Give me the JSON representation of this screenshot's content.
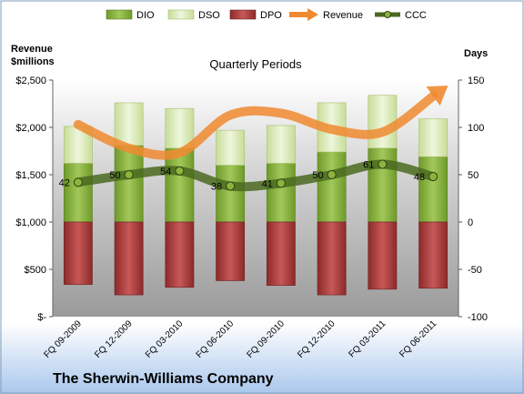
{
  "chart_data": {
    "type": "bar",
    "title": "Quarterly Periods",
    "company": "The Sherwin-Williams Company",
    "ylabel_left": [
      "Revenue",
      "$millions"
    ],
    "ylabel_right": "Days",
    "categories": [
      "FQ 09-2009",
      "FQ 12-2009",
      "FQ 03-2010",
      "FQ 06-2010",
      "FQ 09-2010",
      "FQ 12-2010",
      "FQ 03-2011",
      "FQ 06-2011"
    ],
    "series": [
      {
        "name": "DIO",
        "kind": "bar-stack-positive",
        "values": [
          62,
          81,
          78,
          60,
          62,
          74,
          78,
          69
        ]
      },
      {
        "name": "DSO",
        "kind": "bar-stack-positive",
        "values": [
          39,
          45,
          42,
          37,
          40,
          52,
          56,
          40
        ]
      },
      {
        "name": "DPO",
        "kind": "bar-negative",
        "values": [
          -66,
          -77,
          -69,
          -62,
          -67,
          -77,
          -71,
          -70
        ]
      },
      {
        "name": "Revenue",
        "kind": "arrow-line",
        "axis": "left",
        "values": [
          2030,
          1780,
          1730,
          2130,
          2150,
          1980,
          1950,
          2330
        ]
      },
      {
        "name": "CCC",
        "kind": "line-markers",
        "axis": "right",
        "values": [
          42,
          50,
          54,
          38,
          41,
          50,
          61,
          48
        ]
      }
    ],
    "ccc_labels": [
      "42",
      "50",
      "54",
      "38",
      "41",
      "50",
      "61",
      "48"
    ],
    "left_axis": {
      "min": 0,
      "max": 2500,
      "ticks": [
        "$-",
        "$500",
        "$1,000",
        "$1,500",
        "$2,000",
        "$2,500"
      ]
    },
    "right_axis": {
      "min": -100,
      "max": 150,
      "ticks": [
        "-100",
        "-50",
        "0",
        "50",
        "100",
        "150"
      ]
    },
    "legend": [
      "DIO",
      "DSO",
      "DPO",
      "Revenue",
      "CCC"
    ],
    "legend_position": "top",
    "colors": {
      "dio": "#8db43c",
      "dso": "#d6e8b0",
      "dpo": "#b03a3a",
      "revenue": "#f08a30",
      "ccc": "#4a6a20"
    }
  }
}
